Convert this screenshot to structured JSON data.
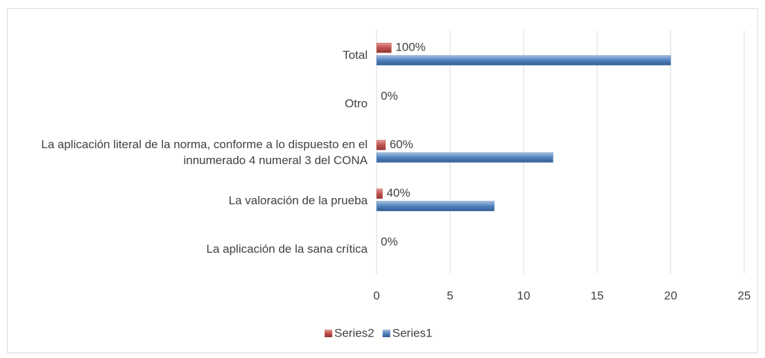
{
  "chart_data": {
    "type": "bar",
    "orientation": "horizontal",
    "categories": [
      "Total",
      "Otro",
      "La aplicación literal de la norma, conforme a lo dispuesto en el innumerado 4 numeral 3 del CONA",
      "La valoración de la prueba",
      "La aplicación de la sana crítica"
    ],
    "series": [
      {
        "name": "Series1",
        "color": "#4f81bd",
        "values": [
          20,
          0,
          12,
          8,
          0
        ]
      },
      {
        "name": "Series2",
        "color": "#c0504d",
        "values": [
          1,
          0,
          0.6,
          0.4,
          0
        ],
        "value_labels": [
          "100%",
          "0%",
          "60%",
          "40%",
          "0%"
        ]
      }
    ],
    "xlim": [
      0,
      25
    ],
    "xticks": [
      0,
      5,
      10,
      15,
      20,
      25
    ],
    "grid": true,
    "legend": "bottom"
  }
}
